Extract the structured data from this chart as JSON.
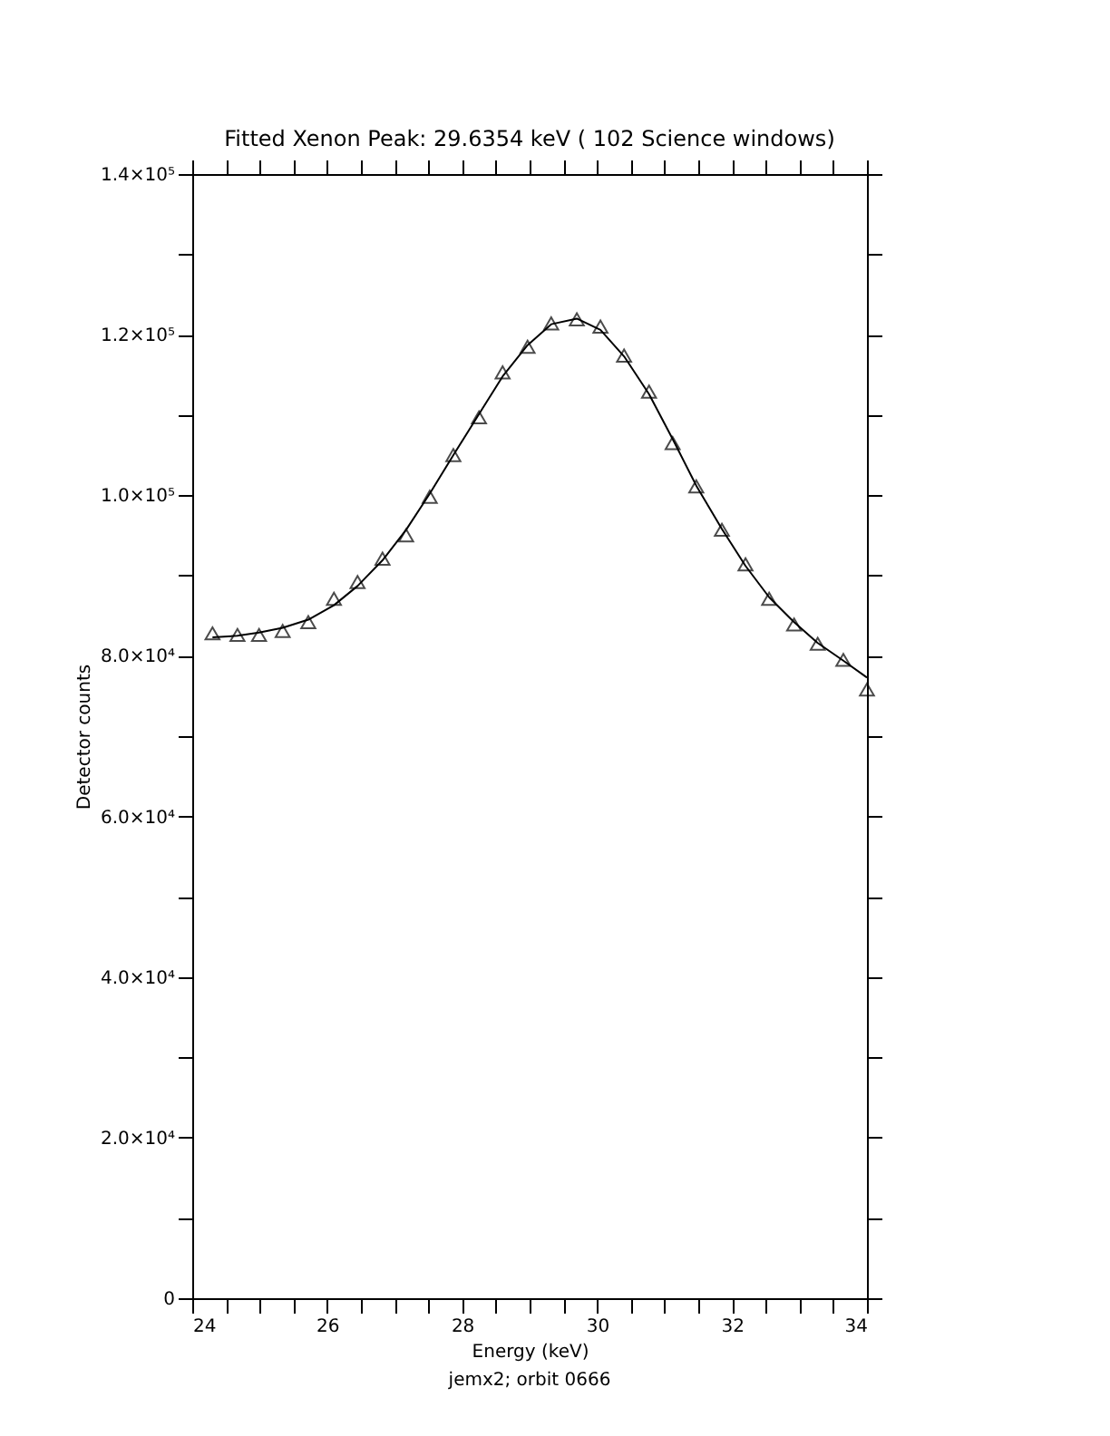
{
  "chart_data": {
    "type": "scatter",
    "title": "Fitted Xenon Peak:        29.6354 keV (      102 Science windows)",
    "xlabel": "Energy (keV)",
    "ylabel": "Detector counts",
    "annotations": [
      "jemx2; orbit 0666"
    ],
    "x": [
      24.3,
      24.67,
      24.99,
      25.34,
      25.72,
      26.1,
      26.45,
      26.82,
      27.17,
      27.52,
      27.87,
      28.25,
      28.6,
      28.97,
      29.32,
      29.7,
      30.05,
      30.4,
      30.77,
      31.12,
      31.47,
      31.85,
      32.2,
      32.55,
      32.92,
      33.27,
      33.65,
      34.0
    ],
    "series": [
      {
        "marker": "triangle",
        "color": "#000000",
        "values": [
          82800,
          82600,
          82600,
          83100,
          84200,
          87100,
          89200,
          92100,
          95000,
          99800,
          105000,
          109700,
          115300,
          118500,
          121400,
          121900,
          121000,
          117400,
          112900,
          106500,
          101100,
          95700,
          91400,
          87100,
          83900,
          81500,
          79500,
          75800
        ]
      },
      {
        "type": "line",
        "marker": "none",
        "line_style": "solid",
        "color": "#000000",
        "values": [
          82300,
          82500,
          82900,
          83500,
          84500,
          86300,
          88700,
          91900,
          95700,
          100200,
          105000,
          110100,
          114800,
          118700,
          121300,
          122000,
          120600,
          117300,
          112600,
          107000,
          101200,
          95800,
          91200,
          87300,
          84200,
          81600,
          79400,
          77300
        ]
      }
    ],
    "xlim": [
      24,
      34
    ],
    "xticks": [
      24,
      {
        "value": 24.5,
        "label": null
      },
      {
        "value": 25,
        "label": null
      },
      {
        "value": 25.5,
        "label": null
      },
      26,
      {
        "value": 26.5,
        "label": null
      },
      {
        "value": 27,
        "label": null
      },
      {
        "value": 27.5,
        "label": null
      },
      28,
      {
        "value": 28.5,
        "label": null
      },
      {
        "value": 29,
        "label": null
      },
      {
        "value": 29.5,
        "label": null
      },
      30,
      {
        "value": 30.5,
        "label": null
      },
      {
        "value": 31,
        "label": null
      },
      {
        "value": 31.5,
        "label": null
      },
      32,
      {
        "value": 32.5,
        "label": null
      },
      {
        "value": 33,
        "label": null
      },
      {
        "value": 33.5,
        "label": null
      },
      34
    ],
    "ylim": [
      0,
      140000
    ],
    "yticks": [
      0,
      {
        "value": 10000,
        "label": null
      },
      {
        "value": 20000,
        "label": "2.0×10⁴"
      },
      {
        "value": 30000,
        "label": null
      },
      {
        "value": 40000,
        "label": "4.0×10⁴"
      },
      {
        "value": 50000,
        "label": null
      },
      {
        "value": 60000,
        "label": "6.0×10⁴"
      },
      {
        "value": 70000,
        "label": null
      },
      {
        "value": 80000,
        "label": "8.0×10⁴"
      },
      {
        "value": 90000,
        "label": null
      },
      {
        "value": 100000,
        "label": "1.0×10⁵"
      },
      {
        "value": 110000,
        "label": null
      },
      {
        "value": 120000,
        "label": "1.2×10⁵"
      },
      {
        "value": 130000,
        "label": null
      },
      {
        "value": 140000,
        "label": "1.4×10⁵"
      }
    ],
    "grid": false
  }
}
